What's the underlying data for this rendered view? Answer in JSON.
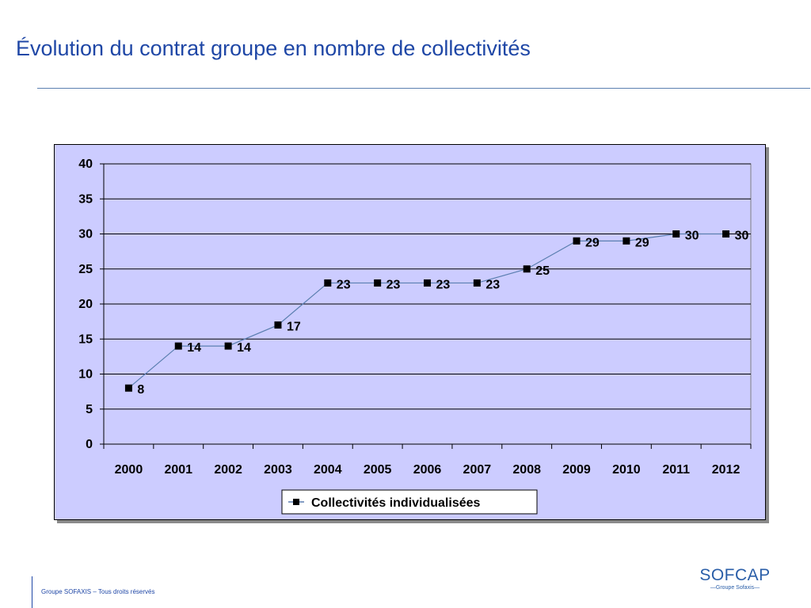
{
  "slide": {
    "title": "Évolution du contrat groupe en nombre de collectivités",
    "footer": "Groupe SOFAXIS – Tous droits réservés",
    "logo_main": "SOFCAP",
    "logo_sub": "—Groupe Sofaxis—"
  },
  "colors": {
    "title": "#1f47a6",
    "plot_background": "#ccccff",
    "series_line": "#5b7fb0",
    "marker": "#000000"
  },
  "chart_data": {
    "type": "line",
    "title": "",
    "xlabel": "",
    "ylabel": "",
    "categories": [
      "2000",
      "2001",
      "2002",
      "2003",
      "2004",
      "2005",
      "2006",
      "2007",
      "2008",
      "2009",
      "2010",
      "2011",
      "2012"
    ],
    "series": [
      {
        "name": "Collectivités individualisées",
        "values": [
          8,
          14,
          14,
          17,
          23,
          23,
          23,
          23,
          25,
          29,
          29,
          30,
          30
        ],
        "marker": "square",
        "data_labels": true
      }
    ],
    "ylim": [
      0,
      40
    ],
    "yticks": [
      "0",
      "5",
      "10",
      "15",
      "20",
      "25",
      "30",
      "35",
      "40"
    ],
    "grid": "horizontal",
    "legend_position": "bottom"
  }
}
